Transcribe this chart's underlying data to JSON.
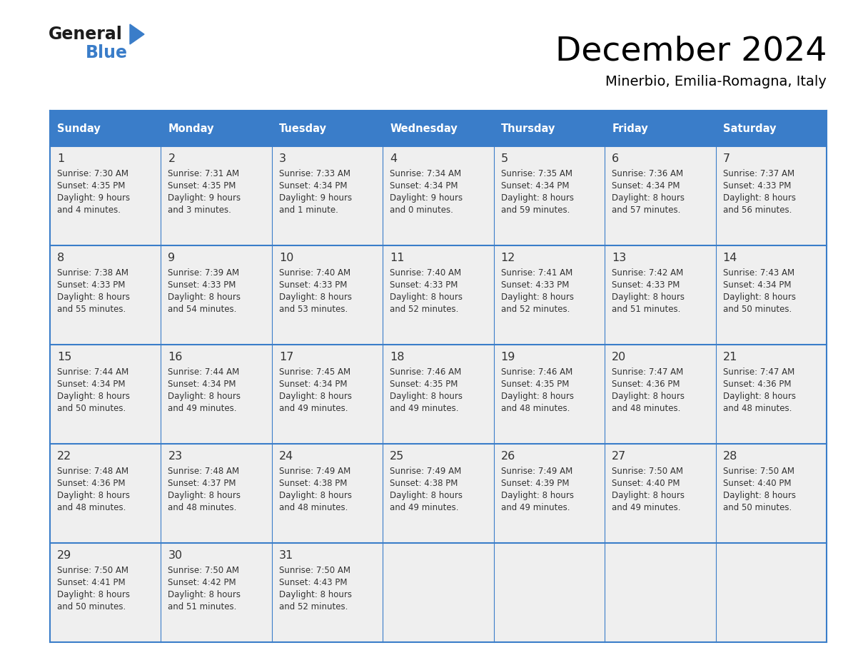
{
  "title": "December 2024",
  "subtitle": "Minerbio, Emilia-Romagna, Italy",
  "header_bg": "#3A7DC9",
  "header_text": "#FFFFFF",
  "cell_bg": "#EFEFEF",
  "text_color": "#333333",
  "line_color": "#3A7DC9",
  "days_of_week": [
    "Sunday",
    "Monday",
    "Tuesday",
    "Wednesday",
    "Thursday",
    "Friday",
    "Saturday"
  ],
  "weeks": [
    [
      {
        "day": "1",
        "sunrise": "7:30 AM",
        "sunset": "4:35 PM",
        "daylight_line1": "9 hours",
        "daylight_line2": "and 4 minutes."
      },
      {
        "day": "2",
        "sunrise": "7:31 AM",
        "sunset": "4:35 PM",
        "daylight_line1": "9 hours",
        "daylight_line2": "and 3 minutes."
      },
      {
        "day": "3",
        "sunrise": "7:33 AM",
        "sunset": "4:34 PM",
        "daylight_line1": "9 hours",
        "daylight_line2": "and 1 minute."
      },
      {
        "day": "4",
        "sunrise": "7:34 AM",
        "sunset": "4:34 PM",
        "daylight_line1": "9 hours",
        "daylight_line2": "and 0 minutes."
      },
      {
        "day": "5",
        "sunrise": "7:35 AM",
        "sunset": "4:34 PM",
        "daylight_line1": "8 hours",
        "daylight_line2": "and 59 minutes."
      },
      {
        "day": "6",
        "sunrise": "7:36 AM",
        "sunset": "4:34 PM",
        "daylight_line1": "8 hours",
        "daylight_line2": "and 57 minutes."
      },
      {
        "day": "7",
        "sunrise": "7:37 AM",
        "sunset": "4:33 PM",
        "daylight_line1": "8 hours",
        "daylight_line2": "and 56 minutes."
      }
    ],
    [
      {
        "day": "8",
        "sunrise": "7:38 AM",
        "sunset": "4:33 PM",
        "daylight_line1": "8 hours",
        "daylight_line2": "and 55 minutes."
      },
      {
        "day": "9",
        "sunrise": "7:39 AM",
        "sunset": "4:33 PM",
        "daylight_line1": "8 hours",
        "daylight_line2": "and 54 minutes."
      },
      {
        "day": "10",
        "sunrise": "7:40 AM",
        "sunset": "4:33 PM",
        "daylight_line1": "8 hours",
        "daylight_line2": "and 53 minutes."
      },
      {
        "day": "11",
        "sunrise": "7:40 AM",
        "sunset": "4:33 PM",
        "daylight_line1": "8 hours",
        "daylight_line2": "and 52 minutes."
      },
      {
        "day": "12",
        "sunrise": "7:41 AM",
        "sunset": "4:33 PM",
        "daylight_line1": "8 hours",
        "daylight_line2": "and 52 minutes."
      },
      {
        "day": "13",
        "sunrise": "7:42 AM",
        "sunset": "4:33 PM",
        "daylight_line1": "8 hours",
        "daylight_line2": "and 51 minutes."
      },
      {
        "day": "14",
        "sunrise": "7:43 AM",
        "sunset": "4:34 PM",
        "daylight_line1": "8 hours",
        "daylight_line2": "and 50 minutes."
      }
    ],
    [
      {
        "day": "15",
        "sunrise": "7:44 AM",
        "sunset": "4:34 PM",
        "daylight_line1": "8 hours",
        "daylight_line2": "and 50 minutes."
      },
      {
        "day": "16",
        "sunrise": "7:44 AM",
        "sunset": "4:34 PM",
        "daylight_line1": "8 hours",
        "daylight_line2": "and 49 minutes."
      },
      {
        "day": "17",
        "sunrise": "7:45 AM",
        "sunset": "4:34 PM",
        "daylight_line1": "8 hours",
        "daylight_line2": "and 49 minutes."
      },
      {
        "day": "18",
        "sunrise": "7:46 AM",
        "sunset": "4:35 PM",
        "daylight_line1": "8 hours",
        "daylight_line2": "and 49 minutes."
      },
      {
        "day": "19",
        "sunrise": "7:46 AM",
        "sunset": "4:35 PM",
        "daylight_line1": "8 hours",
        "daylight_line2": "and 48 minutes."
      },
      {
        "day": "20",
        "sunrise": "7:47 AM",
        "sunset": "4:36 PM",
        "daylight_line1": "8 hours",
        "daylight_line2": "and 48 minutes."
      },
      {
        "day": "21",
        "sunrise": "7:47 AM",
        "sunset": "4:36 PM",
        "daylight_line1": "8 hours",
        "daylight_line2": "and 48 minutes."
      }
    ],
    [
      {
        "day": "22",
        "sunrise": "7:48 AM",
        "sunset": "4:36 PM",
        "daylight_line1": "8 hours",
        "daylight_line2": "and 48 minutes."
      },
      {
        "day": "23",
        "sunrise": "7:48 AM",
        "sunset": "4:37 PM",
        "daylight_line1": "8 hours",
        "daylight_line2": "and 48 minutes."
      },
      {
        "day": "24",
        "sunrise": "7:49 AM",
        "sunset": "4:38 PM",
        "daylight_line1": "8 hours",
        "daylight_line2": "and 48 minutes."
      },
      {
        "day": "25",
        "sunrise": "7:49 AM",
        "sunset": "4:38 PM",
        "daylight_line1": "8 hours",
        "daylight_line2": "and 49 minutes."
      },
      {
        "day": "26",
        "sunrise": "7:49 AM",
        "sunset": "4:39 PM",
        "daylight_line1": "8 hours",
        "daylight_line2": "and 49 minutes."
      },
      {
        "day": "27",
        "sunrise": "7:50 AM",
        "sunset": "4:40 PM",
        "daylight_line1": "8 hours",
        "daylight_line2": "and 49 minutes."
      },
      {
        "day": "28",
        "sunrise": "7:50 AM",
        "sunset": "4:40 PM",
        "daylight_line1": "8 hours",
        "daylight_line2": "and 50 minutes."
      }
    ],
    [
      {
        "day": "29",
        "sunrise": "7:50 AM",
        "sunset": "4:41 PM",
        "daylight_line1": "8 hours",
        "daylight_line2": "and 50 minutes."
      },
      {
        "day": "30",
        "sunrise": "7:50 AM",
        "sunset": "4:42 PM",
        "daylight_line1": "8 hours",
        "daylight_line2": "and 51 minutes."
      },
      {
        "day": "31",
        "sunrise": "7:50 AM",
        "sunset": "4:43 PM",
        "daylight_line1": "8 hours",
        "daylight_line2": "and 52 minutes."
      },
      null,
      null,
      null,
      null
    ]
  ]
}
